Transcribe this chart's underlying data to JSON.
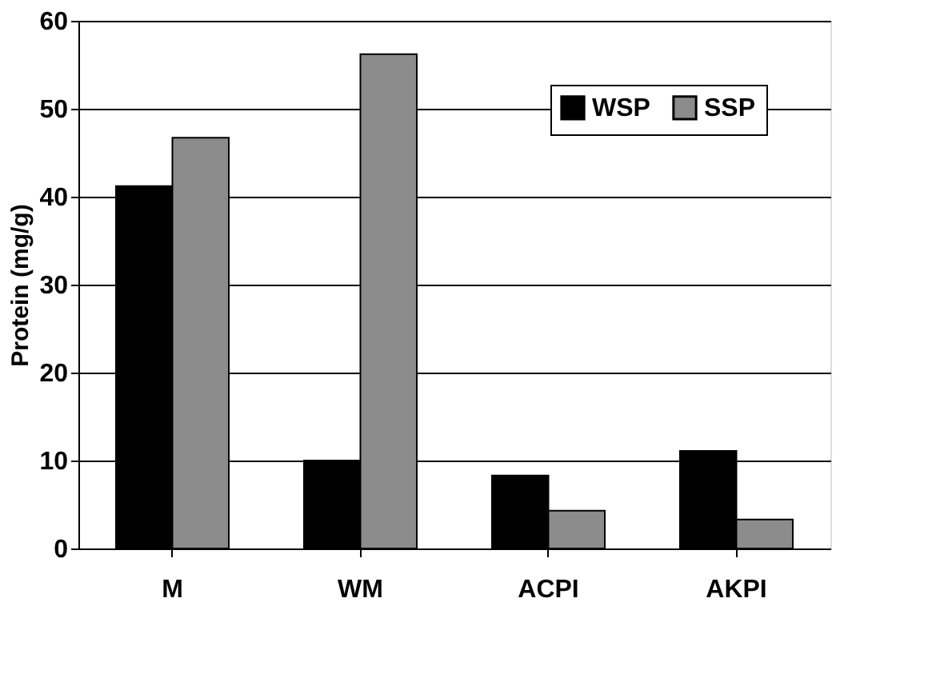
{
  "chart_data": {
    "type": "bar",
    "ylabel": "Protein (mg/g)",
    "categories": [
      "M",
      "WM",
      "ACPI",
      "AKPI"
    ],
    "series": [
      {
        "name": "WSP",
        "color": "#000000",
        "values": [
          41.2,
          10.0,
          8.3,
          11.1
        ]
      },
      {
        "name": "SSP",
        "color": "#8c8c8c",
        "values": [
          46.7,
          56.2,
          4.3,
          3.3
        ]
      }
    ],
    "ylim": [
      0,
      60
    ],
    "yticks": [
      0,
      10,
      20,
      30,
      40,
      50,
      60
    ],
    "grid": "y",
    "legend": "top right"
  }
}
